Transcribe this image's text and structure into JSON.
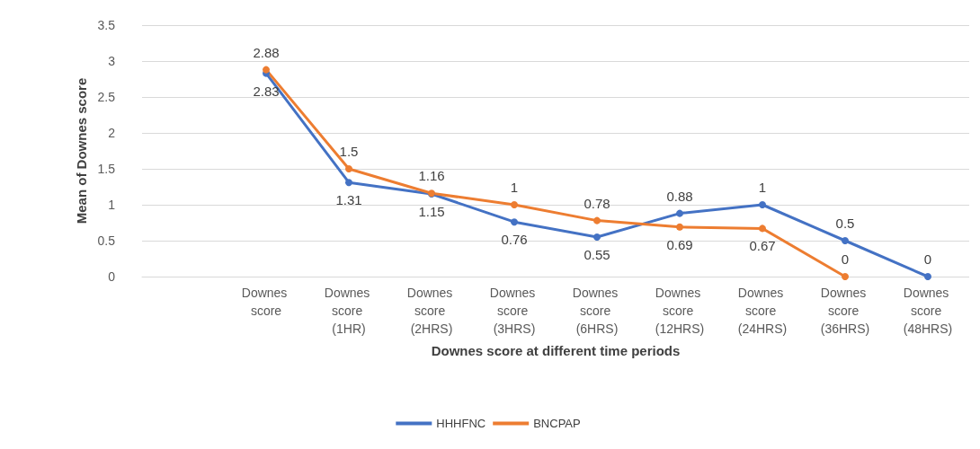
{
  "chart_data": {
    "type": "line",
    "xlabel": "Downes score at different time periods",
    "ylabel": "Mean of Downes score",
    "categories": [
      null,
      "Downes score",
      "Downes score (1HR)",
      "Downes score (2HRS)",
      "Downes score (3HRS)",
      "Downes score (6HRS)",
      "Downes score (12HRS)",
      "Downes score (24HRS)",
      "Downes score (36HRS)",
      "Downes score (48HRS)"
    ],
    "series": [
      {
        "name": "HHHFNC",
        "color": "#4472c4",
        "values": [
          null,
          2.83,
          1.31,
          1.15,
          0.76,
          0.55,
          0.88,
          1,
          0.5,
          0
        ]
      },
      {
        "name": "BNCPAP",
        "color": "#ed7d31",
        "values": [
          null,
          2.88,
          1.5,
          1.16,
          1,
          0.78,
          0.69,
          0.67,
          0,
          null
        ]
      }
    ],
    "ylim": [
      0,
      3.5
    ],
    "yticks": [
      0,
      0.5,
      1,
      1.5,
      2,
      2.5,
      3,
      3.5
    ],
    "grid": "y",
    "legend": "bottom",
    "marker": "circle",
    "line_style": "solid",
    "data_labels": true
  }
}
